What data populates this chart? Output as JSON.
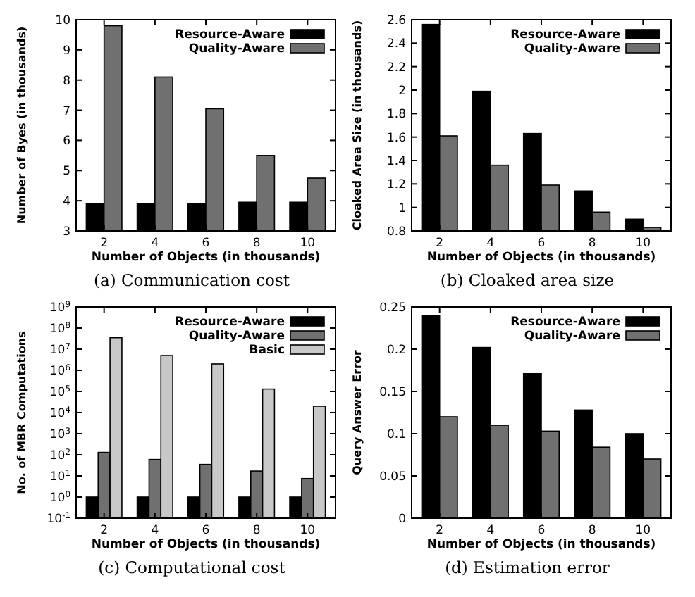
{
  "chart_data": [
    {
      "type": "bar",
      "title": "(a) Communication cost",
      "xlabel": "Number of Objects (in thousands)",
      "ylabel": "Number of Byes (in thousands)",
      "categories": [
        "2",
        "4",
        "6",
        "8",
        "10"
      ],
      "ylim": [
        3,
        10
      ],
      "yticks": [
        3,
        4,
        5,
        6,
        7,
        8,
        9,
        10
      ],
      "legend": "top right",
      "series": [
        {
          "name": "Resource-Aware",
          "color": "#000000",
          "values": [
            3.9,
            3.9,
            3.9,
            3.95,
            3.95
          ]
        },
        {
          "name": "Quality-Aware",
          "color": "#707070",
          "values": [
            9.8,
            8.1,
            7.05,
            5.5,
            4.75
          ]
        }
      ]
    },
    {
      "type": "bar",
      "title": "(b) Cloaked area size",
      "xlabel": "Number of Objects (in thousands)",
      "ylabel": "Cloaked Area Size (in thousands)",
      "categories": [
        "2",
        "4",
        "6",
        "8",
        "10"
      ],
      "ylim": [
        0.8,
        2.6
      ],
      "yticks": [
        0.8,
        1,
        1.2,
        1.4,
        1.6,
        1.8,
        2,
        2.2,
        2.4,
        2.6
      ],
      "legend": "top right",
      "series": [
        {
          "name": "Resource-Aware",
          "color": "#000000",
          "values": [
            2.56,
            1.99,
            1.63,
            1.14,
            0.9
          ]
        },
        {
          "name": "Quality-Aware",
          "color": "#707070",
          "values": [
            1.61,
            1.36,
            1.19,
            0.96,
            0.83
          ]
        }
      ]
    },
    {
      "type": "bar",
      "title": "(c) Computational cost",
      "xlabel": "Number of Objects (in thousands)",
      "ylabel": "No. of MBR Computations",
      "categories": [
        "2",
        "4",
        "6",
        "8",
        "10"
      ],
      "log": true,
      "ylim": [
        0.1,
        1000000000
      ],
      "yticks": [
        {
          "value": 0.1,
          "label": "10$^{-1}$"
        },
        {
          "value": 1,
          "label": "10$^{0}$"
        },
        {
          "value": 10,
          "label": "10$^{1}$"
        },
        {
          "value": 100,
          "label": "10$^{2}$"
        },
        {
          "value": 1000,
          "label": "10$^{3}$"
        },
        {
          "value": 10000,
          "label": "10$^{4}$"
        },
        {
          "value": 100000,
          "label": "10$^{5}$"
        },
        {
          "value": 1000000,
          "label": "10$^{6}$"
        },
        {
          "value": 10000000,
          "label": "10$^{7}$"
        },
        {
          "value": 100000000,
          "label": "10$^{8}$"
        },
        {
          "value": 1000000000,
          "label": "10$^{9}$"
        }
      ],
      "legend": "top right",
      "series": [
        {
          "name": "Resource-Aware",
          "color": "#000000",
          "values": [
            1,
            1,
            1,
            1,
            1
          ]
        },
        {
          "name": "Quality-Aware",
          "color": "#707070",
          "values": [
            130,
            60,
            35,
            17,
            7.5
          ]
        },
        {
          "name": "Basic",
          "color": "#c8c8c8",
          "values": [
            35000000,
            5000000,
            2000000,
            130000,
            20000
          ]
        }
      ]
    },
    {
      "type": "bar",
      "title": "(d) Estimation error",
      "xlabel": "Number of Objects (in thousands)",
      "ylabel": "Query Answer Error",
      "categories": [
        "2",
        "4",
        "6",
        "8",
        "10"
      ],
      "ylim": [
        0,
        0.25
      ],
      "yticks": [
        0,
        0.05,
        0.1,
        0.15,
        0.2,
        0.25
      ],
      "legend": "top right",
      "series": [
        {
          "name": "Resource-Aware",
          "color": "#000000",
          "values": [
            0.24,
            0.202,
            0.171,
            0.128,
            0.1
          ]
        },
        {
          "name": "Quality-Aware",
          "color": "#707070",
          "values": [
            0.12,
            0.11,
            0.103,
            0.084,
            0.07
          ]
        }
      ]
    }
  ]
}
